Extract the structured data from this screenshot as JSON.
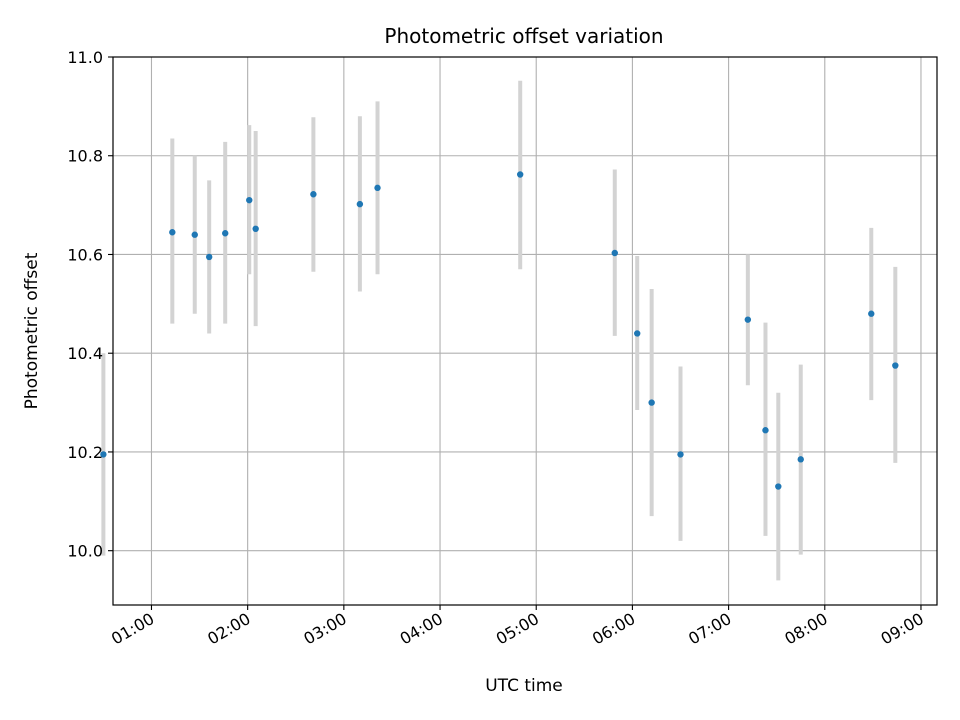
{
  "chart_data": {
    "type": "scatter",
    "title": "Photometric offset variation",
    "xlabel": "UTC time",
    "ylabel": "Photometric offset",
    "x_tick_labels": [
      "01:00",
      "02:00",
      "03:00",
      "04:00",
      "05:00",
      "06:00",
      "07:00",
      "08:00",
      "09:00"
    ],
    "y_tick_labels": [
      "10.0",
      "10.2",
      "10.4",
      "10.6",
      "10.8",
      "11.0"
    ],
    "xlim": [
      "00:36",
      "09:10"
    ],
    "ylim": [
      9.89,
      11.0
    ],
    "grid": true,
    "colors": {
      "points": "#1f77b4",
      "errorbars": "#d3d3d3",
      "grid": "#b0b0b0"
    },
    "points": [
      {
        "x": "00:30",
        "y": 10.195,
        "yerr_low": 9.99,
        "yerr_high": 10.4
      },
      {
        "x": "01:13",
        "y": 10.645,
        "yerr_low": 10.46,
        "yerr_high": 10.835
      },
      {
        "x": "01:27",
        "y": 10.64,
        "yerr_low": 10.48,
        "yerr_high": 10.8
      },
      {
        "x": "01:36",
        "y": 10.595,
        "yerr_low": 10.44,
        "yerr_high": 10.75
      },
      {
        "x": "01:46",
        "y": 10.643,
        "yerr_low": 10.46,
        "yerr_high": 10.828
      },
      {
        "x": "02:01",
        "y": 10.71,
        "yerr_low": 10.56,
        "yerr_high": 10.862
      },
      {
        "x": "02:05",
        "y": 10.652,
        "yerr_low": 10.455,
        "yerr_high": 10.85
      },
      {
        "x": "02:41",
        "y": 10.722,
        "yerr_low": 10.565,
        "yerr_high": 10.878
      },
      {
        "x": "03:10",
        "y": 10.702,
        "yerr_low": 10.525,
        "yerr_high": 10.88
      },
      {
        "x": "03:21",
        "y": 10.735,
        "yerr_low": 10.56,
        "yerr_high": 10.91
      },
      {
        "x": "04:50",
        "y": 10.762,
        "yerr_low": 10.57,
        "yerr_high": 10.952
      },
      {
        "x": "05:49",
        "y": 10.603,
        "yerr_low": 10.435,
        "yerr_high": 10.772
      },
      {
        "x": "06:03",
        "y": 10.44,
        "yerr_low": 10.285,
        "yerr_high": 10.597
      },
      {
        "x": "06:12",
        "y": 10.3,
        "yerr_low": 10.07,
        "yerr_high": 10.53
      },
      {
        "x": "06:30",
        "y": 10.195,
        "yerr_low": 10.02,
        "yerr_high": 10.373
      },
      {
        "x": "07:12",
        "y": 10.468,
        "yerr_low": 10.335,
        "yerr_high": 10.6
      },
      {
        "x": "07:23",
        "y": 10.244,
        "yerr_low": 10.03,
        "yerr_high": 10.462
      },
      {
        "x": "07:31",
        "y": 10.13,
        "yerr_low": 9.94,
        "yerr_high": 10.32
      },
      {
        "x": "07:45",
        "y": 10.185,
        "yerr_low": 9.992,
        "yerr_high": 10.377
      },
      {
        "x": "08:29",
        "y": 10.48,
        "yerr_low": 10.305,
        "yerr_high": 10.654
      },
      {
        "x": "08:44",
        "y": 10.375,
        "yerr_low": 10.178,
        "yerr_high": 10.575
      }
    ]
  }
}
